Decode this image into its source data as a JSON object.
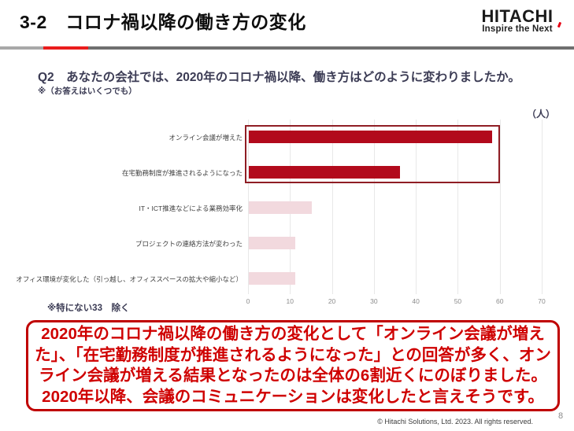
{
  "header": {
    "title": "3-2　コロナ禍以降の働き方の変化",
    "logo": {
      "name": "HITACHI",
      "tagline": "Inspire the Next"
    }
  },
  "question": {
    "text": "Q2　あなたの会社では、2020年のコロナ禍以降、働き方はどのように変わりましたか。",
    "note": "※（お答えはいくつでも）"
  },
  "chart_data": {
    "type": "bar",
    "orientation": "horizontal",
    "title": "",
    "unit_label": "（人）",
    "categories": [
      "オンライン会議が増えた",
      "在宅勤務制度が推進されるようになった",
      "IT・ICT推進などによる業務効率化",
      "プロジェクトの連絡方法が変わった",
      "オフィス環境が変化した（引っ越し、オフィススペースの拡大や縮小など）"
    ],
    "values": [
      58,
      36,
      15,
      11,
      11
    ],
    "xlim": [
      0,
      70
    ],
    "xticks": [
      0,
      10,
      20,
      30,
      40,
      50,
      60,
      70
    ],
    "grid": true,
    "highlight_note": "top two bars outlined with dark red box",
    "colors": {
      "highlight_bar": "#b20a1c",
      "normal_bar": "#f2d9de",
      "outline_box": "#8f1d24"
    },
    "footnote": "※特にない33　除く"
  },
  "summary": {
    "lines": [
      "2020年のコロナ禍以降の働き方の変化として「オンライン会議が増え",
      "た」、「在宅勤務制度が推進されるようになった」との回答が多く、オン",
      "ライン会議が増える結果となったのは全体の6割近くにのぼりました。",
      "2020年以降、会議のコミュニケーションは変化したと言えそうです。"
    ]
  },
  "footer": {
    "copyright": "© Hitachi Solutions, Ltd. 2023. All rights reserved.",
    "page_number": "8"
  }
}
